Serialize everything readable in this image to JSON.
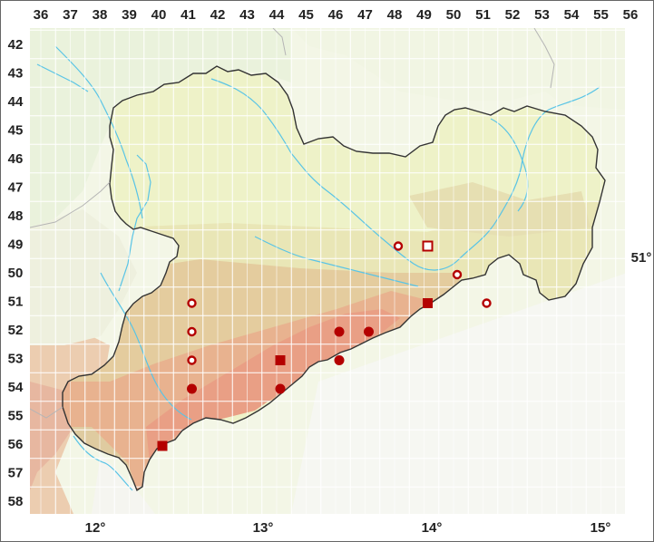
{
  "map": {
    "columns": [
      "36",
      "37",
      "38",
      "39",
      "40",
      "41",
      "42",
      "43",
      "44",
      "45",
      "46",
      "47",
      "48",
      "49",
      "50",
      "51",
      "52",
      "53",
      "54",
      "55",
      "56"
    ],
    "rows": [
      "42",
      "43",
      "44",
      "45",
      "46",
      "47",
      "48",
      "49",
      "50",
      "51",
      "52",
      "53",
      "54",
      "55",
      "56",
      "57",
      "58"
    ],
    "longitude_labels": [
      "12°",
      "13°",
      "14°",
      "15°"
    ],
    "latitude_labels": [
      "51°"
    ],
    "colors": {
      "lowland": "#eef2c8",
      "hills": "#e4e2ae",
      "upland": "#e2c99a",
      "mountain": "#e8a488",
      "outside": "#f6f8ec",
      "water": "#59c4e6",
      "grid": "#ffffff",
      "border": "#333333",
      "marker": "#b40000"
    },
    "legend_symbols": [
      "filled-square",
      "filled-circle",
      "open-circle",
      "open-square"
    ],
    "markers": [
      {
        "col": 41,
        "row": 51,
        "symbol": "open-circle"
      },
      {
        "col": 41,
        "row": 52,
        "symbol": "open-circle"
      },
      {
        "col": 41,
        "row": 53,
        "symbol": "open-circle"
      },
      {
        "col": 41,
        "row": 54,
        "symbol": "filled-circle"
      },
      {
        "col": 40,
        "row": 56,
        "symbol": "filled-square"
      },
      {
        "col": 44,
        "row": 53,
        "symbol": "filled-square"
      },
      {
        "col": 44,
        "row": 54,
        "symbol": "filled-circle"
      },
      {
        "col": 46,
        "row": 52,
        "symbol": "filled-circle"
      },
      {
        "col": 46,
        "row": 53,
        "symbol": "filled-circle"
      },
      {
        "col": 47,
        "row": 52,
        "symbol": "filled-circle"
      },
      {
        "col": 48,
        "row": 49,
        "symbol": "open-circle"
      },
      {
        "col": 49,
        "row": 49,
        "symbol": "open-square"
      },
      {
        "col": 50,
        "row": 50,
        "symbol": "open-circle"
      },
      {
        "col": 49,
        "row": 51,
        "symbol": "filled-square"
      },
      {
        "col": 51,
        "row": 51,
        "symbol": "open-circle"
      }
    ]
  }
}
